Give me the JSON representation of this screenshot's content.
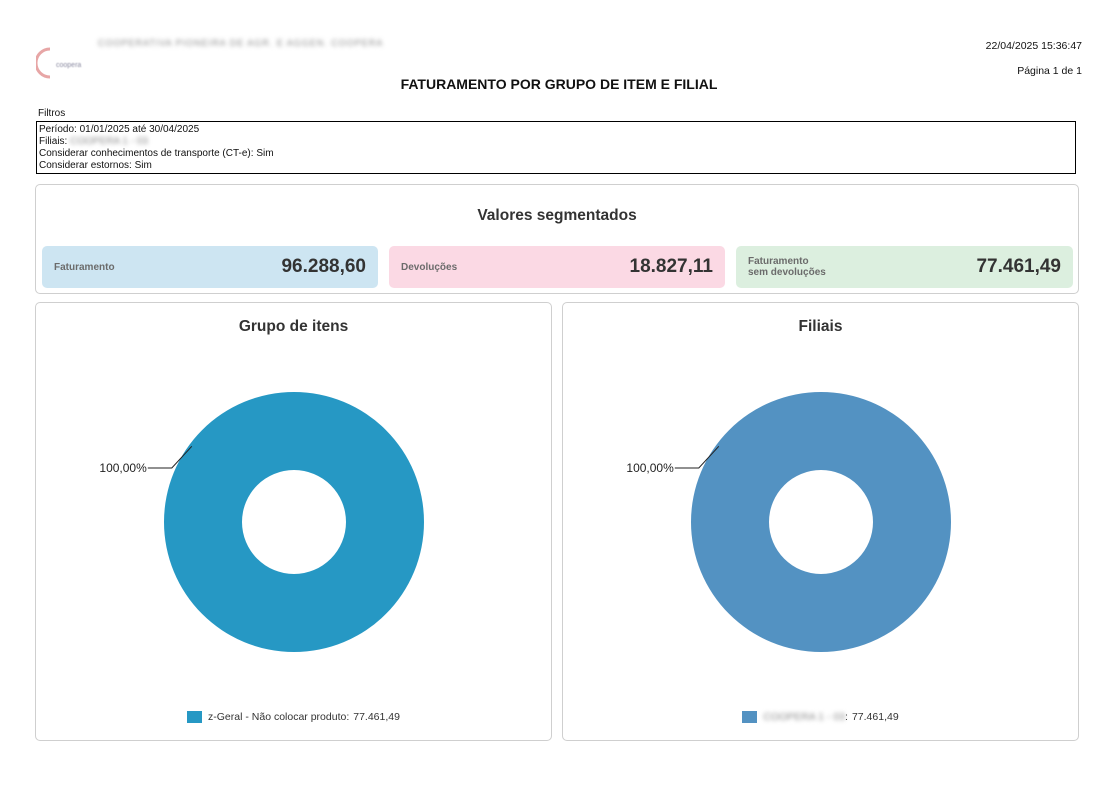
{
  "header": {
    "company_name": "COOPERATIVA PIONEIRA DE AGR. E AGGEN. COOPERA",
    "datetime": "22/04/2025 15:36:47",
    "page": "Página 1 de 1",
    "title": "FATURAMENTO POR GRUPO DE ITEM E FILIAL",
    "logo_text": "coopera"
  },
  "filters": {
    "label": "Filtros",
    "period": "Período: 01/01/2025 até 30/04/2025",
    "branches_label": "Filiais:",
    "branches_value": "COOPERA 1 - 03",
    "cte": "Considerar conhecimentos de transporte (CT-e): Sim",
    "reversals": "Considerar estornos: Sim"
  },
  "segmented": {
    "title": "Valores segmentados",
    "kpis": [
      {
        "label": "Faturamento",
        "value": "96.288,60",
        "color": "#cde5f2"
      },
      {
        "label": "Devoluções",
        "value": "18.827,11",
        "color": "#fbd9e4"
      },
      {
        "label_line1": "Faturamento",
        "label_line2": "sem devoluções",
        "value": "77.461,49",
        "color": "#dcefdf"
      }
    ]
  },
  "chart_data": [
    {
      "type": "pie",
      "title": "Grupo de itens",
      "categories": [
        "z-Geral - Não colocar produto"
      ],
      "values": [
        77461.49
      ],
      "value_labels": [
        "77.461,49"
      ],
      "percent_labels": [
        "100,00%"
      ],
      "colors": [
        "#2698c4"
      ],
      "legend_placement": "bottom"
    },
    {
      "type": "pie",
      "title": "Filiais",
      "categories": [
        "COOPERA 1 - 03"
      ],
      "values": [
        77461.49
      ],
      "value_labels": [
        "77.461,49"
      ],
      "percent_labels": [
        "100,00%"
      ],
      "colors": [
        "#5392c2"
      ],
      "legend_placement": "bottom"
    }
  ]
}
